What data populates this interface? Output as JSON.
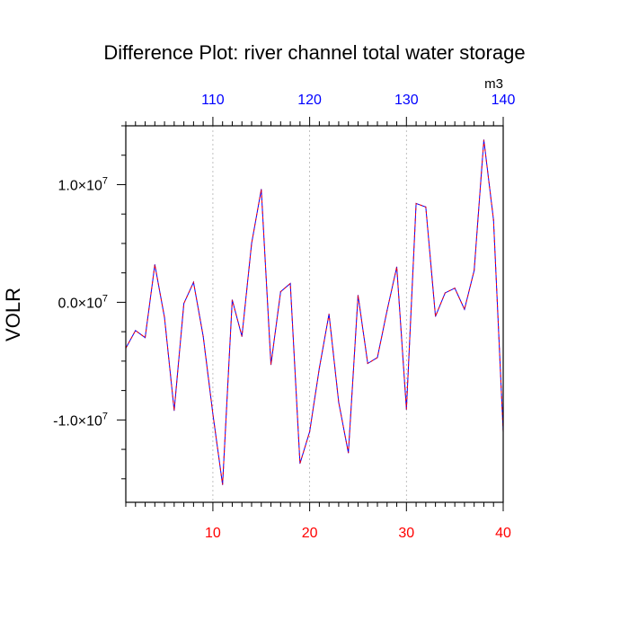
{
  "chart_data": {
    "type": "line",
    "title": "Difference Plot: river channel total water storage",
    "ylabel": "VOLR",
    "units": "m3",
    "xlim": [
      1,
      40
    ],
    "ylim": [
      -17000000.0,
      15000000.0
    ],
    "x_bottom_ticks": [
      "10",
      "20",
      "30",
      "40"
    ],
    "x_bottom_tick_values": [
      10,
      20,
      30,
      40
    ],
    "x_top_ticks": [
      "110",
      "120",
      "130",
      "140"
    ],
    "x_top_tick_values": [
      10,
      20,
      30,
      40
    ],
    "y_ticks": [
      {
        "value": 10000000.0,
        "mantissa": "1.0",
        "exponent": "7"
      },
      {
        "value": 0.0,
        "mantissa": "0.0",
        "exponent": "7"
      },
      {
        "value": -10000000.0,
        "mantissa": "-1.0",
        "exponent": "7"
      }
    ],
    "grid": "vertical dotted at major x ticks",
    "x": [
      1,
      2,
      3,
      4,
      5,
      6,
      7,
      8,
      9,
      10,
      11,
      12,
      13,
      14,
      15,
      16,
      17,
      18,
      19,
      20,
      21,
      22,
      23,
      24,
      25,
      26,
      27,
      28,
      29,
      30,
      31,
      32,
      33,
      34,
      35,
      36,
      37,
      38,
      39,
      40
    ],
    "values": [
      -3900000.0,
      -2400000.0,
      -3000000.0,
      3200000.0,
      -1300000.0,
      -9200000.0,
      -100000.0,
      1700000.0,
      -2900000.0,
      -9500000.0,
      -15500000.0,
      200000.0,
      -2900000.0,
      5000000.0,
      9600000.0,
      -5300000.0,
      900000.0,
      1600000.0,
      -13700000.0,
      -11000000.0,
      -5600000.0,
      -1000000.0,
      -8500000.0,
      -12800000.0,
      600000.0,
      -5200000.0,
      -4700000.0,
      -700000.0,
      3000000.0,
      -9100000.0,
      8400000.0,
      8100000.0,
      -1200000.0,
      800000.0,
      1200000.0,
      -600000.0,
      2700000.0,
      13800000.0,
      7000000.0,
      -11000000.0
    ],
    "series_colors": [
      "#0000ff",
      "#ff0000"
    ],
    "colors": {
      "bottom_tick_labels": "#ff0000",
      "top_tick_labels": "#0000ff"
    }
  }
}
